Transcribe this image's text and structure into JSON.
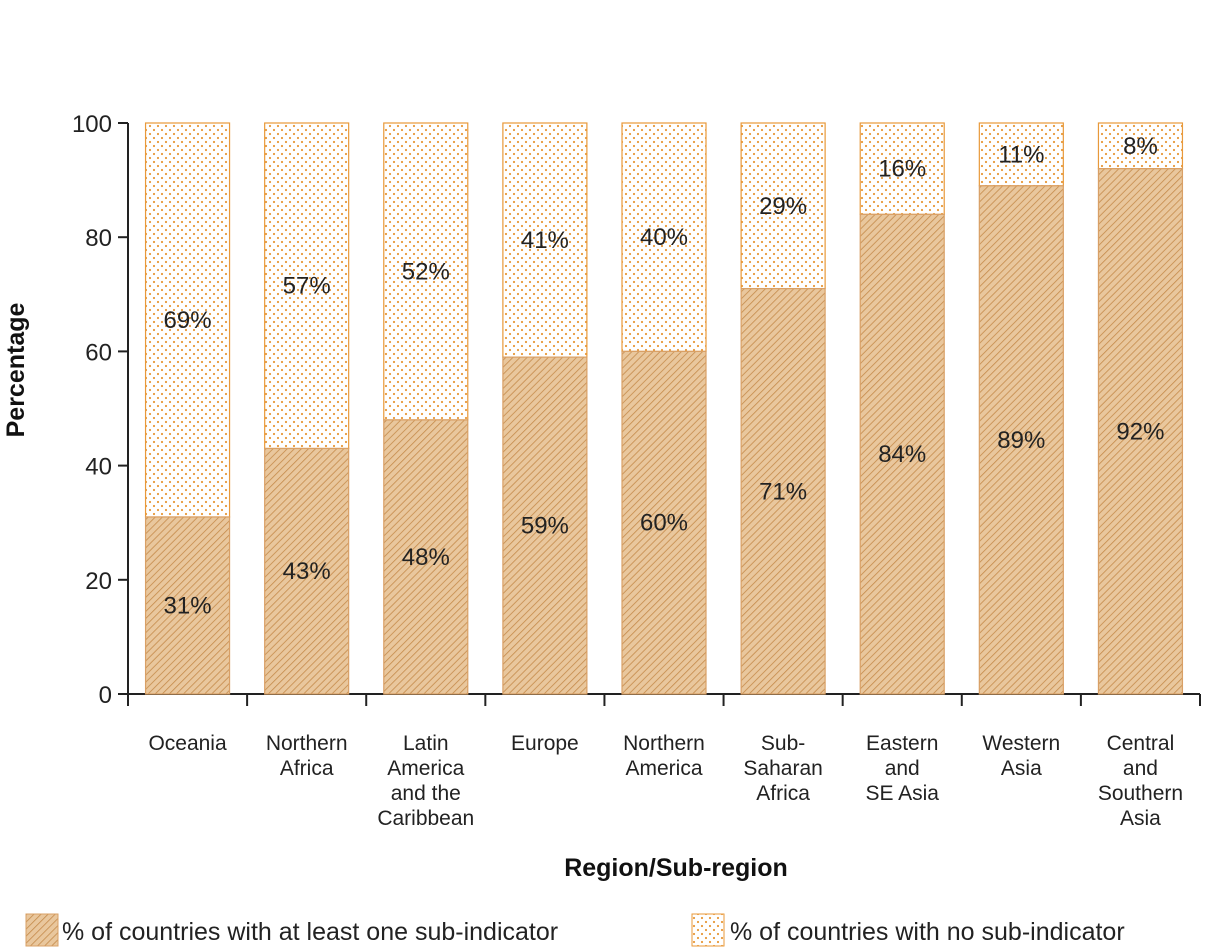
{
  "chart_data": {
    "type": "bar",
    "stacked": true,
    "categories": [
      "Oceania",
      "Northern\nAfrica",
      "Latin\nAmerica\nand the\nCaribbean",
      "Europe",
      "Northern\nAmerica",
      "Sub-\nSaharan\nAfrica",
      "Eastern\nand\nSE Asia",
      "Western\nAsia",
      "Central\nand\nSouthern\nAsia"
    ],
    "series": [
      {
        "name": "% of countries with at least one sub-indicator",
        "values": [
          31,
          43,
          48,
          59,
          60,
          71,
          84,
          89,
          92
        ],
        "labels": [
          "31%",
          "43%",
          "48%",
          "59%",
          "60%",
          "71%",
          "84%",
          "89%",
          "92%"
        ],
        "pattern": "hatched",
        "color": "#d9a066"
      },
      {
        "name": "% of countries with no sub-indicator",
        "values": [
          69,
          57,
          52,
          41,
          40,
          29,
          16,
          11,
          8
        ],
        "labels": [
          "69%",
          "57%",
          "52%",
          "41%",
          "40%",
          "29%",
          "16%",
          "11%",
          "8%"
        ],
        "pattern": "dotted",
        "color": "#e8993a"
      }
    ],
    "xlabel": "Region/Sub-region",
    "ylabel": "Percentage",
    "ylim": [
      0,
      100
    ],
    "yticks": [
      0,
      20,
      40,
      60,
      80,
      100
    ],
    "legend_position": "bottom",
    "grid": false
  }
}
